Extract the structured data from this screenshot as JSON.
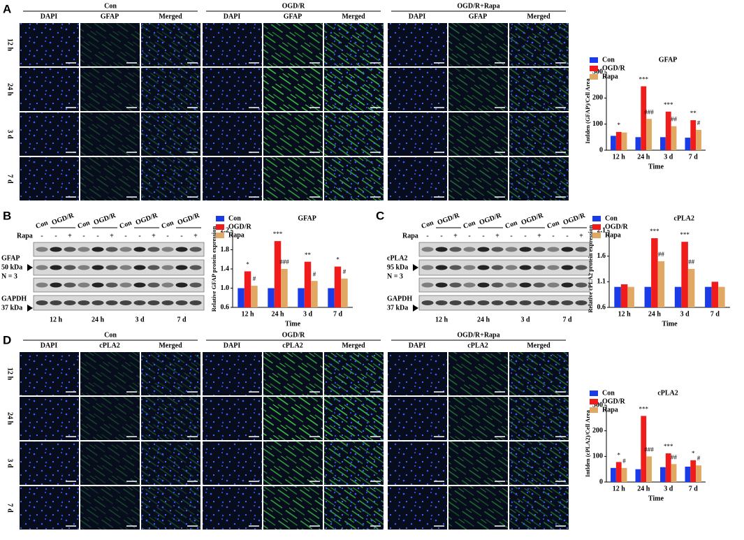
{
  "panel_labels": [
    "A",
    "B",
    "C",
    "D"
  ],
  "imaging": [
    {
      "groups": [
        "Con",
        "OGD/R",
        "OGD/R+Rapa"
      ],
      "channels": [
        "DAPI",
        "GFAP",
        "Merged"
      ],
      "rows": [
        "12 h",
        "24 h",
        "3 d",
        "7 d"
      ]
    },
    {
      "groups": [
        "Con",
        "OGD/R",
        "OGD/R+Rapa"
      ],
      "channels": [
        "DAPI",
        "cPLA2",
        "Merged"
      ],
      "rows": [
        "12 h",
        "24 h",
        "3 d",
        "7 d"
      ]
    }
  ],
  "blots": [
    {
      "conditions": [
        "Con",
        "OGD/R",
        "Con",
        "OGD/R",
        "Con",
        "OGD/R",
        "Con",
        "OGD/R"
      ],
      "rapa": "Rapa",
      "signs": [
        "-",
        "-",
        "+",
        "-",
        "-",
        "+",
        "-",
        "-",
        "+",
        "-",
        "-",
        "+"
      ],
      "protein": "GFAP",
      "protein_size": "50 kDa",
      "n": "N = 3",
      "control": "GAPDH",
      "control_size": "37 kDa",
      "times": [
        "12 h",
        "24 h",
        "3 d",
        "7 d"
      ]
    },
    {
      "conditions": [
        "Con",
        "OGD/R",
        "Con",
        "OGD/R",
        "Con",
        "OGD/R",
        "Con",
        "OGD/R"
      ],
      "rapa": "Rapa",
      "signs": [
        "-",
        "-",
        "+",
        "-",
        "-",
        "+",
        "-",
        "-",
        "+",
        "-",
        "-",
        "+"
      ],
      "protein": "cPLA2",
      "protein_size": "95 kDa",
      "n": "N = 3",
      "control": "GAPDH",
      "control_size": "37 kDa",
      "times": [
        "12 h",
        "24 h",
        "3 d",
        "7 d"
      ]
    }
  ],
  "chart_data": [
    {
      "type": "bar",
      "title": "GFAP",
      "x_label": "Time",
      "y_label": "Intlden (GFAP)/Cell Area",
      "categories": [
        "12 h",
        "24 h",
        "3 d",
        "7 d"
      ],
      "ylim": [
        0,
        300
      ],
      "yticks": [
        0,
        100,
        200,
        300
      ],
      "series": [
        {
          "name": "Con",
          "color": "#1a3ce8",
          "values": [
            55,
            50,
            50,
            48
          ],
          "annotations": [
            null,
            null,
            null,
            null
          ]
        },
        {
          "name": "OGD/R",
          "color": "#f01c1c",
          "values": [
            70,
            245,
            148,
            115
          ],
          "annotations": [
            "*",
            "***",
            "***",
            "**"
          ]
        },
        {
          "name": "Rapa",
          "color": "#e0a862",
          "values": [
            68,
            120,
            92,
            78
          ],
          "annotations": [
            null,
            "###",
            "##",
            "#"
          ]
        }
      ]
    },
    {
      "type": "bar",
      "title": "GFAP",
      "x_label": "Time",
      "y_label": "Relative GFAP protein expression",
      "categories": [
        "12 h",
        "24 h",
        "3 d",
        "7 d"
      ],
      "ylim": [
        0.6,
        2.2
      ],
      "yticks": [
        0.6,
        {
          "value": 1.0,
          "label": "1.0"
        },
        1.4,
        1.8,
        2.2
      ],
      "series": [
        {
          "name": "Con",
          "color": "#1a3ce8",
          "values": [
            1.0,
            1.0,
            1.0,
            1.0
          ],
          "annotations": [
            null,
            null,
            null,
            null
          ]
        },
        {
          "name": "OGD/R",
          "color": "#f01c1c",
          "values": [
            1.35,
            1.98,
            1.55,
            1.45
          ],
          "annotations": [
            "*",
            "***",
            "**",
            "*"
          ]
        },
        {
          "name": "Rapa",
          "color": "#e0a862",
          "values": [
            1.05,
            1.4,
            1.15,
            1.2
          ],
          "annotations": [
            "#",
            "###",
            "#",
            "#"
          ]
        }
      ]
    },
    {
      "type": "bar",
      "title": "cPLA2",
      "x_label": "Time",
      "y_label": "Relative cPLA2 protein expression",
      "categories": [
        "12 h",
        "24 h",
        "3 d",
        "7 d"
      ],
      "ylim": [
        0.6,
        2.1
      ],
      "yticks": [
        0.6,
        1.1,
        1.6,
        2.1
      ],
      "series": [
        {
          "name": "Con",
          "color": "#1a3ce8",
          "values": [
            1.0,
            1.0,
            1.0,
            1.0
          ],
          "annotations": [
            null,
            null,
            null,
            null
          ]
        },
        {
          "name": "OGD/R",
          "color": "#f01c1c",
          "values": [
            1.05,
            1.95,
            1.88,
            1.1
          ],
          "annotations": [
            null,
            "***",
            "***",
            null
          ]
        },
        {
          "name": "Rapa",
          "color": "#e0a862",
          "values": [
            1.0,
            1.5,
            1.35,
            1.0
          ],
          "annotations": [
            null,
            "##",
            "##",
            null
          ]
        }
      ]
    },
    {
      "type": "bar",
      "title": "cPLA2",
      "x_label": "Time",
      "y_label": "Intlden (cPLA2)/Cell Area",
      "categories": [
        "12 h",
        "24 h",
        "3 d",
        "7 d"
      ],
      "ylim": [
        0,
        300
      ],
      "yticks": [
        0,
        100,
        200,
        300
      ],
      "series": [
        {
          "name": "Con",
          "color": "#1a3ce8",
          "values": [
            55,
            50,
            58,
            60
          ],
          "annotations": [
            null,
            null,
            null,
            null
          ]
        },
        {
          "name": "OGD/R",
          "color": "#f01c1c",
          "values": [
            78,
            258,
            112,
            85
          ],
          "annotations": [
            "*",
            "***",
            "***",
            "*"
          ]
        },
        {
          "name": "Rapa",
          "color": "#e0a862",
          "values": [
            55,
            100,
            70,
            65
          ],
          "annotations": [
            "#",
            "###",
            "##",
            "#"
          ]
        }
      ]
    }
  ]
}
